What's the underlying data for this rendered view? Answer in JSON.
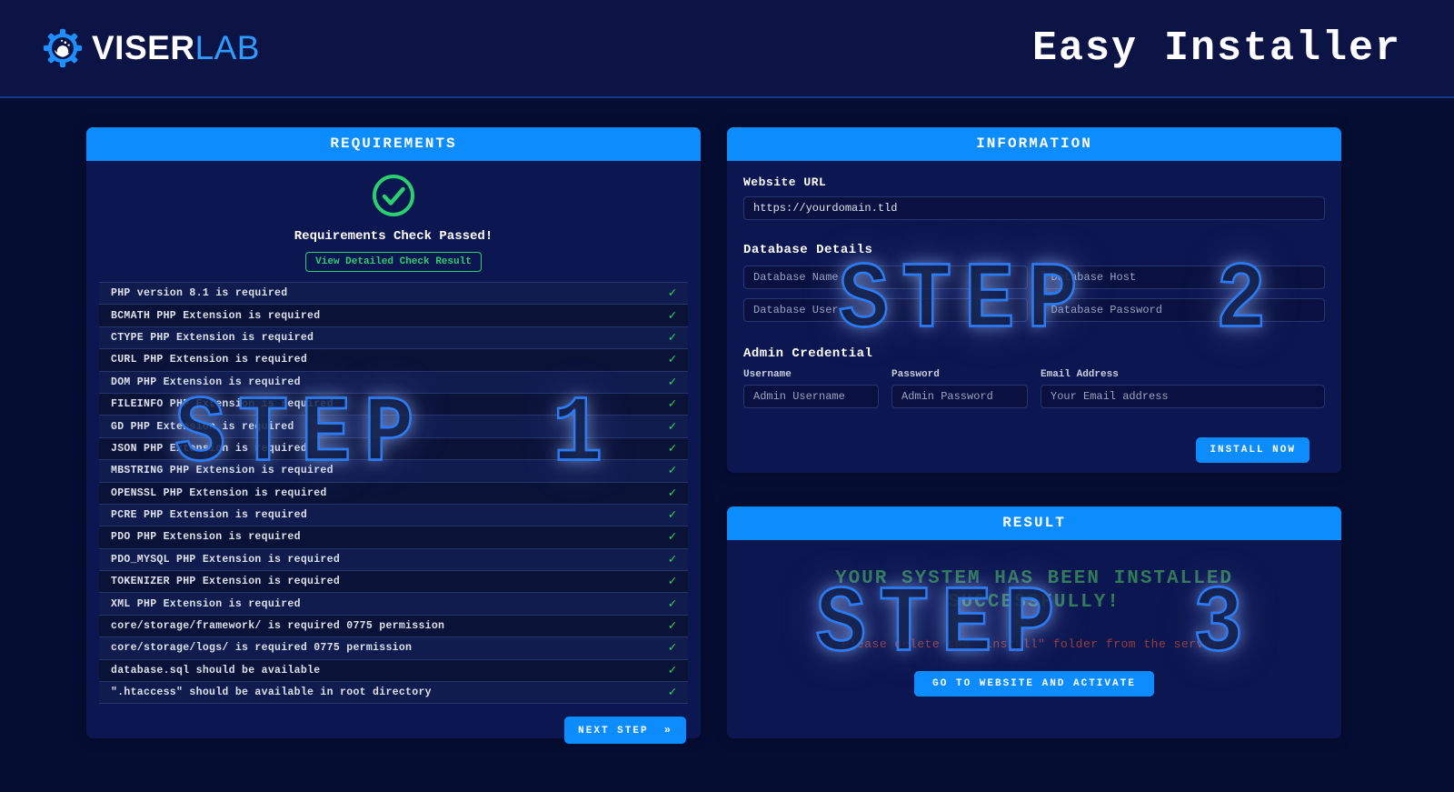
{
  "header": {
    "logo_viser": "VISER",
    "logo_lab": "LAB",
    "title": "Easy Installer"
  },
  "requirements": {
    "title": "REQUIREMENTS",
    "status": "Requirements Check Passed!",
    "detail_button": "View Detailed Check Result",
    "items": [
      {
        "label": "PHP version 8.1 is required",
        "status_icon": "✓"
      },
      {
        "label": "BCMATH PHP Extension is required",
        "status_icon": "✓"
      },
      {
        "label": "CTYPE PHP Extension is required",
        "status_icon": "✓"
      },
      {
        "label": "CURL PHP Extension is required",
        "status_icon": "✓"
      },
      {
        "label": "DOM PHP Extension is required",
        "status_icon": "✓"
      },
      {
        "label": "FILEINFO PHP Extension is required",
        "status_icon": "✓"
      },
      {
        "label": "GD PHP Extension is required",
        "status_icon": "✓"
      },
      {
        "label": "JSON PHP Extension is required",
        "status_icon": "✓"
      },
      {
        "label": "MBSTRING PHP Extension is required",
        "status_icon": "✓"
      },
      {
        "label": "OPENSSL PHP Extension is required",
        "status_icon": "✓"
      },
      {
        "label": "PCRE PHP Extension is required",
        "status_icon": "✓"
      },
      {
        "label": "PDO PHP Extension is required",
        "status_icon": "✓"
      },
      {
        "label": "PDO_MYSQL PHP Extension is required",
        "status_icon": "✓"
      },
      {
        "label": "TOKENIZER PHP Extension is required",
        "status_icon": "✓"
      },
      {
        "label": "XML PHP Extension is required",
        "status_icon": "✓"
      },
      {
        "label": "core/storage/framework/ is required 0775 permission",
        "status_icon": "✓"
      },
      {
        "label": "core/storage/logs/ is required 0775 permission",
        "status_icon": "✓"
      },
      {
        "label": "database.sql should be available",
        "status_icon": "✓"
      },
      {
        "label": "\".htaccess\" should be available in root directory",
        "status_icon": "✓"
      }
    ],
    "next_button": "NEXT STEP",
    "next_icon": "»"
  },
  "information": {
    "title": "INFORMATION",
    "website_url": {
      "label": "Website URL",
      "value": "https://yourdomain.tld"
    },
    "database": {
      "label": "Database Details",
      "fields": [
        {
          "placeholder": "Database Name"
        },
        {
          "placeholder": "Database Host"
        },
        {
          "placeholder": "Database User"
        },
        {
          "placeholder": "Database Password"
        }
      ]
    },
    "admin": {
      "label": "Admin Credential",
      "fields": [
        {
          "label": "Username",
          "placeholder": "Admin Username"
        },
        {
          "label": "Password",
          "placeholder": "Admin Password"
        },
        {
          "label": "Email Address",
          "placeholder": "Your Email address"
        }
      ]
    },
    "install_button": "INSTALL NOW"
  },
  "result": {
    "title": "RESULT",
    "success_message": "YOUR SYSTEM HAS BEEN INSTALLED SUCCESSFULLY!",
    "delete_note": "Please delete the \"install\" folder from the server.",
    "go_button": "GO TO WEBSITE AND ACTIVATE"
  },
  "watermarks": {
    "step1": "STEP  1",
    "step2": "STEP  2",
    "step3": "STEP  3"
  },
  "colors": {
    "accent_blue": "#0d8cfe",
    "success_green": "#2ecc71",
    "check_green": "#22dd66",
    "result_green": "#337a58",
    "warning_red": "#9e3b3b",
    "page_bg": "#050d33",
    "panel_bg": "#0c1650",
    "topbar_bg": "#0c1445"
  }
}
